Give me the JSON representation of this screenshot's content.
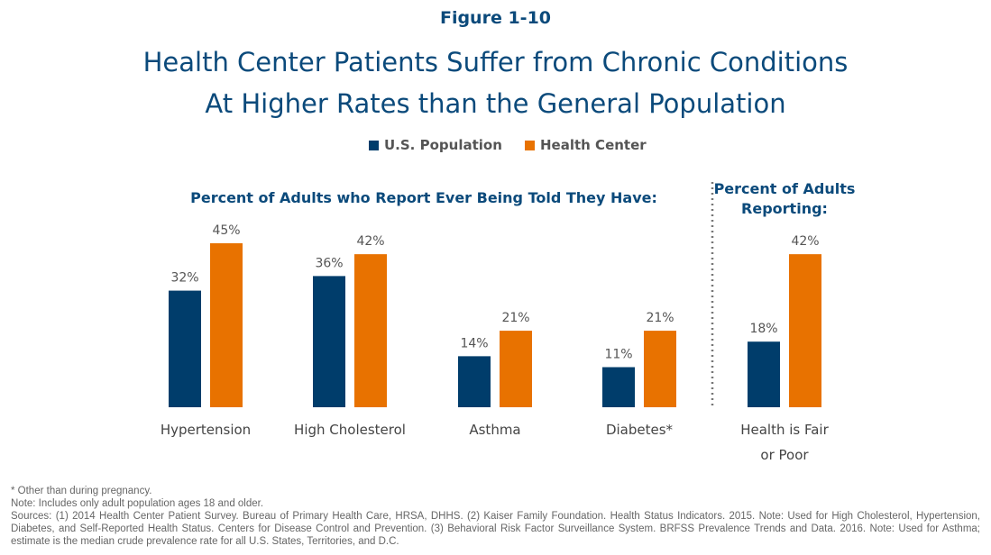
{
  "figure_label": "Figure 1-10",
  "chart_data": {
    "type": "bar",
    "title": [
      "Health Center Patients Suffer from Chronic Conditions",
      "At Higher Rates than the General Population"
    ],
    "legend": {
      "placement": "top",
      "entries": [
        "U.S. Population",
        "Health Center"
      ]
    },
    "colors": {
      "U.S. Population": "#003d6b",
      "Health Center": "#e87200"
    },
    "panel_titles": {
      "left": "Percent of Adults who Report Ever Being Told They Have:",
      "right": [
        "Percent of Adults",
        "Reporting:"
      ]
    },
    "categories": [
      "Hypertension",
      "High Cholesterol",
      "Asthma",
      "Diabetes*",
      [
        "Health is Fair",
        "or Poor"
      ]
    ],
    "series": [
      {
        "name": "U.S. Population",
        "values": [
          32,
          36,
          14,
          11,
          18
        ],
        "labels": [
          "32%",
          "36%",
          "14%",
          "11%",
          "18%"
        ]
      },
      {
        "name": "Health Center",
        "values": [
          45,
          42,
          21,
          21,
          42
        ],
        "labels": [
          "45%",
          "42%",
          "21%",
          "21%",
          "42%"
        ]
      }
    ],
    "ylim": [
      0,
      45
    ],
    "grid": false,
    "divider": "dotted line before last category"
  },
  "footnotes": {
    "asterisk": "* Other than during pregnancy.",
    "note": "Note: Includes only adult population ages 18 and older.",
    "sources": "Sources: (1) 2014 Health Center Patient Survey. Bureau of Primary Health Care, HRSA, DHHS. (2) Kaiser Family Foundation. Health Status Indicators. 2015. Note: Used for High Cholesterol, Hypertension, Diabetes, and Self-Reported Health Status. Centers for Disease Control and Prevention. (3) Behavioral Risk Factor Surveillance System. BRFSS Prevalence Trends and Data. 2016. Note: Used for Asthma; estimate is the median crude prevalence rate for all U.S. States, Territories, and D.C."
  }
}
